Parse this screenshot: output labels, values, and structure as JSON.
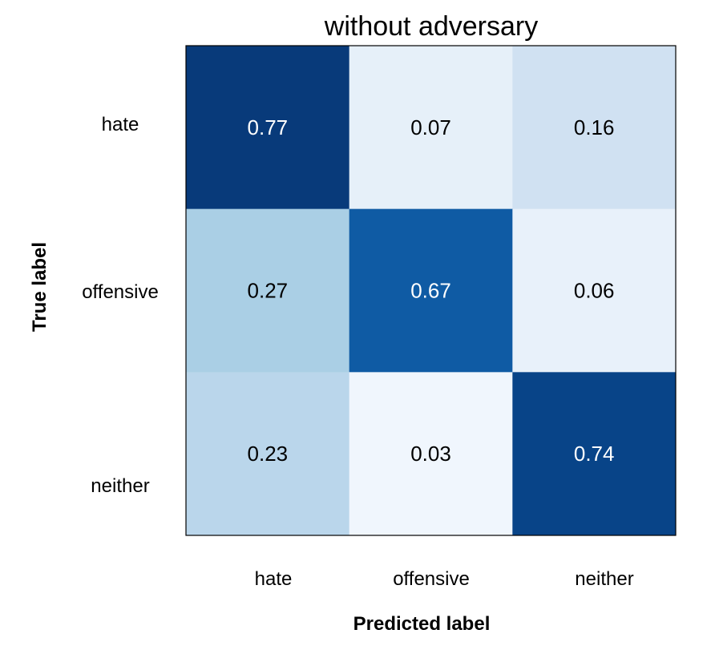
{
  "chart_data": {
    "type": "heatmap",
    "title": "without adversary",
    "xlabel": "Predicted label",
    "ylabel": "True label",
    "x_categories": [
      "hate",
      "offensive",
      "neither"
    ],
    "y_categories": [
      "hate",
      "offensive",
      "neither"
    ],
    "values": [
      [
        0.77,
        0.07,
        0.16
      ],
      [
        0.27,
        0.67,
        0.06
      ],
      [
        0.23,
        0.03,
        0.74
      ]
    ],
    "value_labels": [
      [
        "0.77",
        "0.07",
        "0.16"
      ],
      [
        "0.27",
        "0.67",
        "0.06"
      ],
      [
        "0.23",
        "0.03",
        "0.74"
      ]
    ],
    "colormap": "Blues",
    "colormap_stops": [
      "#f7fbff",
      "#deebf7",
      "#c6dbef",
      "#9ecae1",
      "#6baed6",
      "#4292c6",
      "#2171b5",
      "#08519c",
      "#08306b"
    ],
    "vmin": 0.0,
    "vmax": 0.8,
    "text_color_dark": "#000000",
    "text_color_light": "#ffffff",
    "grid": false,
    "legend": "none"
  }
}
